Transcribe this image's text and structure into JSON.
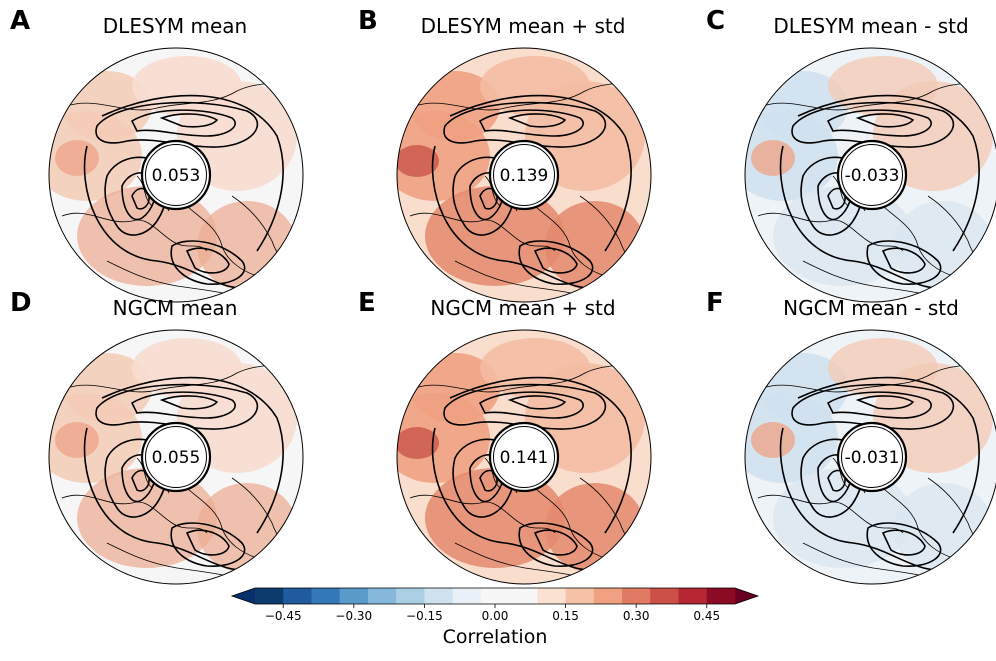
{
  "panels": [
    {
      "letter": "A",
      "title": "DLESYM mean",
      "value": "0.053",
      "theme": "pos"
    },
    {
      "letter": "B",
      "title": "DLESYM mean + std",
      "value": "0.139",
      "theme": "strong"
    },
    {
      "letter": "C",
      "title": "DLESYM mean - std",
      "value": "-0.033",
      "theme": "neg"
    },
    {
      "letter": "D",
      "title": "NGCM mean",
      "value": "0.055",
      "theme": "pos"
    },
    {
      "letter": "E",
      "title": "NGCM mean + std",
      "value": "0.141",
      "theme": "strong"
    },
    {
      "letter": "F",
      "title": "NGCM mean - std",
      "value": "-0.031",
      "theme": "neg"
    }
  ],
  "colorbar": {
    "label": "Correlation",
    "ticks": [
      "−0.45",
      "−0.30",
      "−0.15",
      "0.00",
      "0.15",
      "0.30",
      "0.45"
    ],
    "colors": [
      "#0d3b6e",
      "#1f5b9e",
      "#3479b8",
      "#5a9bcb",
      "#86b9dc",
      "#abd0e6",
      "#cfe3ef",
      "#e9f1f6",
      "#f7f7f7",
      "#f7f7f7",
      "#fbe1d2",
      "#f6c3a8",
      "#efa182",
      "#e07a62",
      "#cc4f48",
      "#b42632",
      "#8c0c25"
    ],
    "under_color": "#08306b",
    "over_color": "#67001f"
  }
}
